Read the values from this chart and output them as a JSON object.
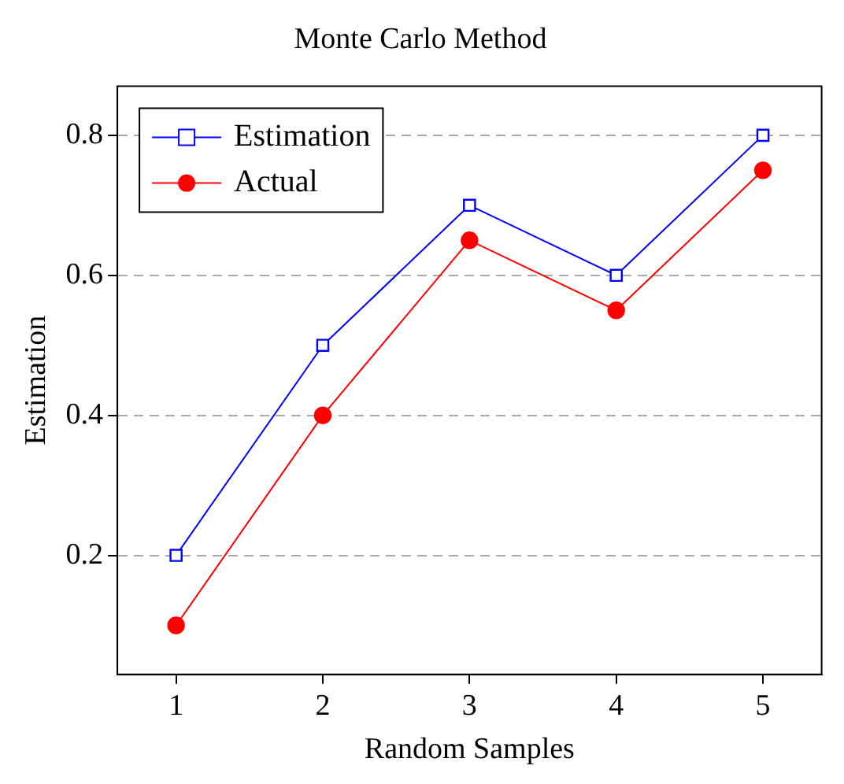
{
  "chart_data": {
    "type": "line",
    "title": "Monte Carlo Method",
    "xlabel": "Random Samples",
    "ylabel": "Estimation",
    "x": [
      1,
      2,
      3,
      4,
      5
    ],
    "series": [
      {
        "name": "Estimation",
        "color": "#0000ff",
        "values": [
          0.2,
          0.5,
          0.7,
          0.6,
          0.8
        ],
        "marker": "square"
      },
      {
        "name": "Actual",
        "color": "#ff0000",
        "values": [
          0.1,
          0.4,
          0.65,
          0.55,
          0.75
        ],
        "marker": "circle"
      }
    ],
    "xlim": [
      0.6,
      5.4
    ],
    "xticks": [
      1,
      2,
      3,
      4,
      5
    ],
    "ylim": [
      0.03,
      0.87
    ],
    "yticks": [
      0.2,
      0.4,
      0.6,
      0.8
    ],
    "grid": "y",
    "line_style": "solid",
    "legend": "top left"
  }
}
